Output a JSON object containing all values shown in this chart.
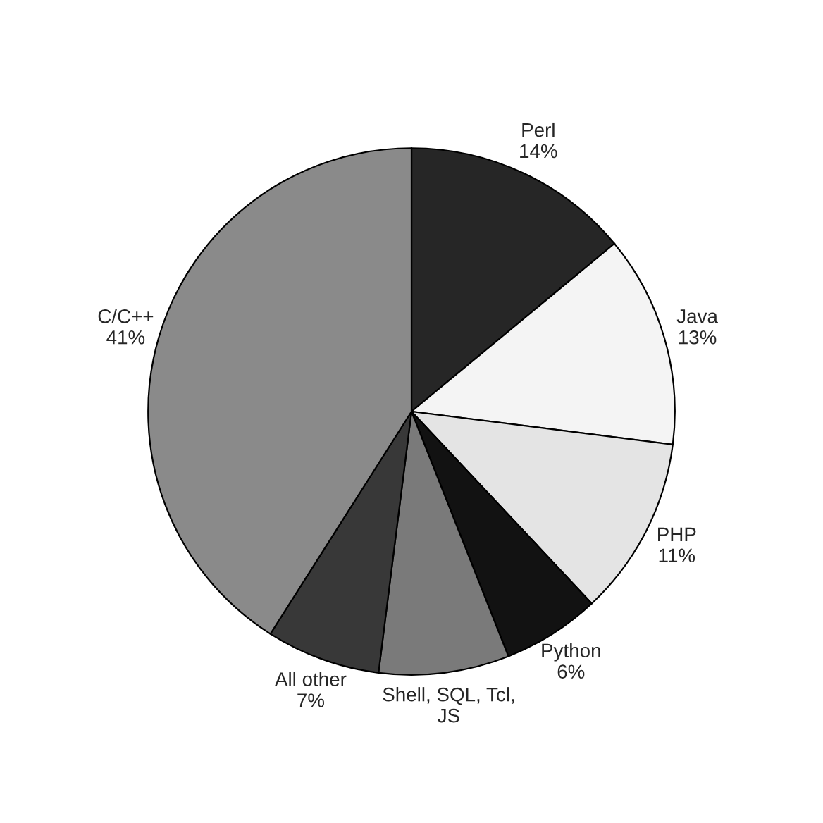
{
  "chart_data": {
    "type": "pie",
    "categories": [
      "Perl",
      "Java",
      "PHP",
      "Python",
      "Shell, SQL, Tcl,\nJS",
      "All other",
      "C/C++"
    ],
    "values": [
      14,
      13,
      11,
      6,
      8,
      7,
      41
    ],
    "value_labels": [
      "14%",
      "13%",
      "11%",
      "6%",
      null,
      "7%",
      "41%"
    ],
    "colors": [
      "#262626",
      "#f4f4f4",
      "#e4e4e4",
      "#121212",
      "#7a7a7a",
      "#383838",
      "#8a8a8a"
    ]
  }
}
